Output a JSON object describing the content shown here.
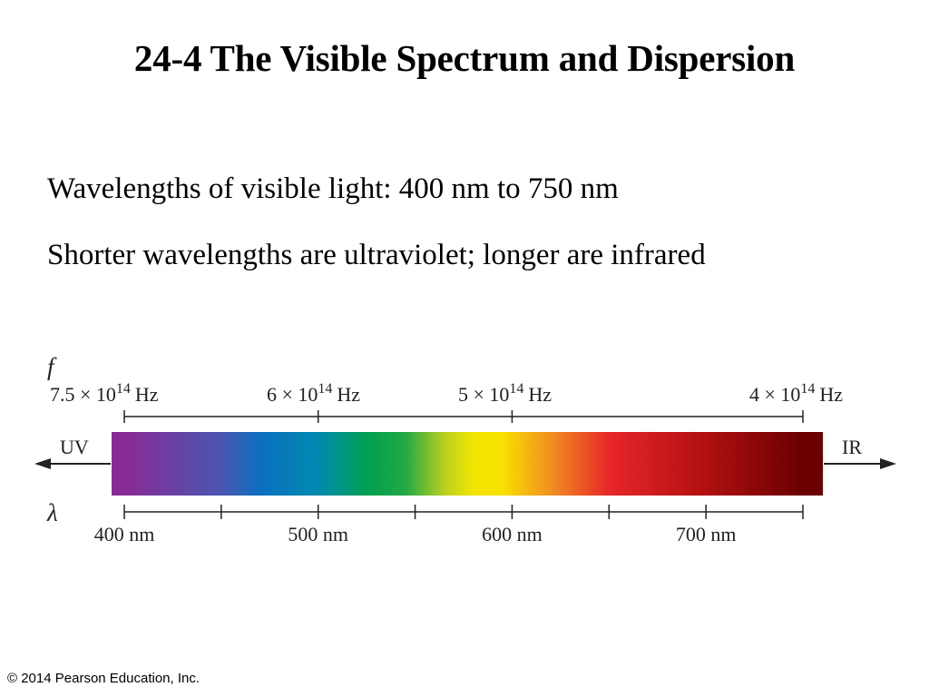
{
  "slide": {
    "title": "24-4 The Visible Spectrum and Dispersion",
    "bullets": [
      "Wavelengths of visible light: 400 nm to 750 nm",
      "Shorter wavelengths are ultraviolet; longer are infrared"
    ],
    "copyright": "© 2014 Pearson Education, Inc."
  },
  "spectrum": {
    "frequency_symbol": "f",
    "wavelength_symbol": "λ",
    "left_label": "UV",
    "right_label": "IR",
    "frequency_ticks": [
      {
        "coef": "7.5",
        "exp": "14",
        "unit": "Hz",
        "wavelength_nm": 400
      },
      {
        "coef": "6",
        "exp": "14",
        "unit": "Hz",
        "wavelength_nm": 500
      },
      {
        "coef": "5",
        "exp": "14",
        "unit": "Hz",
        "wavelength_nm": 600
      },
      {
        "coef": "4",
        "exp": "14",
        "unit": "Hz",
        "wavelength_nm": 750
      }
    ],
    "times_symbol": "×",
    "base": "10",
    "wavelength_labels": [
      "400 nm",
      "500 nm",
      "600 nm",
      "700 nm"
    ],
    "wavelength_major_ticks_nm": [
      400,
      500,
      600,
      700
    ],
    "wavelength_minor_ticks_nm": [
      450,
      550,
      650,
      750
    ],
    "wavelength_range_nm": [
      400,
      750
    ],
    "gradient_colors": [
      {
        "nm": 400,
        "color": "#8a2a96"
      },
      {
        "nm": 450,
        "color": "#4a55b0"
      },
      {
        "nm": 470,
        "color": "#0b6fc0"
      },
      {
        "nm": 500,
        "color": "#008ab0"
      },
      {
        "nm": 525,
        "color": "#00a050"
      },
      {
        "nm": 545,
        "color": "#22a845"
      },
      {
        "nm": 565,
        "color": "#b8d020"
      },
      {
        "nm": 580,
        "color": "#f2e600"
      },
      {
        "nm": 595,
        "color": "#f8e000"
      },
      {
        "nm": 620,
        "color": "#f09020"
      },
      {
        "nm": 650,
        "color": "#e8262a"
      },
      {
        "nm": 700,
        "color": "#b01010"
      },
      {
        "nm": 750,
        "color": "#6a0000"
      }
    ]
  }
}
